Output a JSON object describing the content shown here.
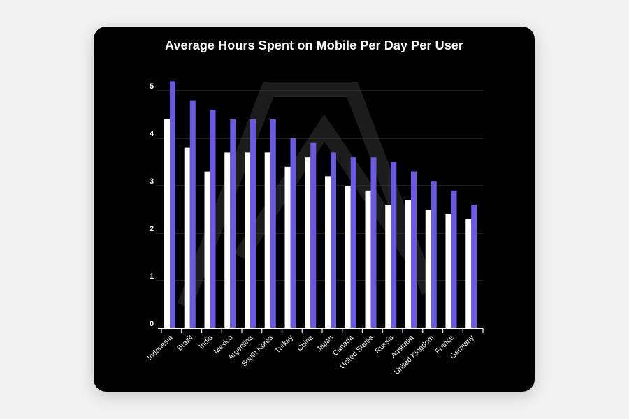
{
  "chart_data": {
    "type": "bar",
    "title": "Average Hours Spent on Mobile Per Day Per User",
    "xlabel": "",
    "ylabel": "",
    "ylim": [
      0,
      5
    ],
    "yticks": [
      "0",
      "1",
      "2",
      "3",
      "4",
      "5"
    ],
    "grid": true,
    "legend": "none",
    "categories": [
      "Indonesia",
      "Brazil",
      "India",
      "Mexico",
      "Argentina",
      "South Korea",
      "Turkey",
      "China",
      "Japan",
      "Canada",
      "United States",
      "Russia",
      "Australia",
      "United Kingdom",
      "France",
      "Germany"
    ],
    "series": [
      {
        "color": "#ffffff",
        "values": [
          4.4,
          3.8,
          3.3,
          3.7,
          3.7,
          3.7,
          3.4,
          3.6,
          3.2,
          3.0,
          2.9,
          2.6,
          2.7,
          2.5,
          2.4,
          2.3
        ]
      },
      {
        "color": "#6a5ae0",
        "values": [
          5.2,
          4.8,
          4.6,
          4.4,
          4.4,
          4.4,
          4.0,
          3.9,
          3.7,
          3.6,
          3.6,
          3.5,
          3.3,
          3.1,
          2.9,
          2.6
        ]
      }
    ]
  },
  "colors": {
    "card": "#000000",
    "background": "#f2f2f2",
    "grid": "#3a3a3a",
    "axis": "#ffffff",
    "text": "#ffffff"
  }
}
